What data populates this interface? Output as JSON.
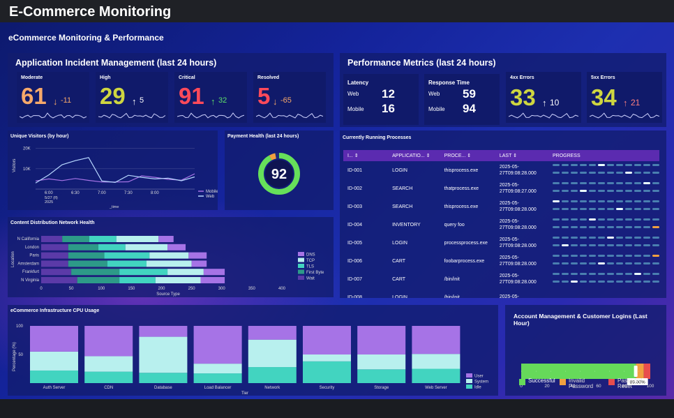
{
  "app": {
    "title": "E-Commerce Monitoring"
  },
  "dashboard": {
    "title": "eCommerce Monitoring & Performance"
  },
  "incidents": {
    "title": "Application Incident Management (last 24 hours)",
    "cards": [
      {
        "label": "Moderate",
        "value": "61",
        "arrow": "↓",
        "delta": "-11",
        "value_color": "#f7a96a",
        "delta_color": "#f7a96a"
      },
      {
        "label": "High",
        "value": "29",
        "arrow": "↑",
        "delta": "5",
        "value_color": "#cfd640",
        "delta_color": "#ffffff"
      },
      {
        "label": "Critical",
        "value": "91",
        "arrow": "↑",
        "delta": "32",
        "value_color": "#ff4a5a",
        "delta_color": "#5ee06a"
      },
      {
        "label": "Resolved",
        "value": "5",
        "arrow": "↓",
        "delta": "-65",
        "value_color": "#ff4a5a",
        "delta_color": "#f7a96a"
      }
    ]
  },
  "perf": {
    "title": "Performance Metrics (last 24 hours)",
    "latency": {
      "label": "Latency",
      "web_label": "Web",
      "web": "12",
      "mobile_label": "Mobile",
      "mobile": "16"
    },
    "response": {
      "label": "Response Time",
      "web_label": "Web",
      "web": "59",
      "mobile_label": "Mobile",
      "mobile": "94"
    },
    "errors4": {
      "label": "4xx Errors",
      "value": "33",
      "arrow": "↑",
      "delta": "10",
      "value_color": "#cfd640",
      "delta_color": "#ffffff"
    },
    "errors5": {
      "label": "5xx Errors",
      "value": "34",
      "arrow": "↑",
      "delta": "21",
      "value_color": "#cfd640",
      "delta_color": "#ff8080"
    }
  },
  "visitors": {
    "title": "Unique Visitors (by hour)",
    "ylabel": "Visitors",
    "xlabel": "_time",
    "date1": "5/27 (fl)",
    "date2": "2025"
  },
  "payment": {
    "title": "Payment Health (last 24 hours)",
    "value": "92",
    "fraction": 0.92
  },
  "processes": {
    "title": "Currently Running Processes",
    "columns": [
      "I... ⇕",
      "APPLICATIO... ⇕",
      "PROCE... ⇕",
      "LAST ⇕",
      "PROGRESS"
    ],
    "rows": [
      {
        "id": "ID-001",
        "app": "LOGIN",
        "proc": "thisprocess.exe",
        "last1": "2025-05-",
        "last2": "27T09:08:28.000",
        "p1": 5,
        "p2": 8
      },
      {
        "id": "ID-002",
        "app": "SEARCH",
        "proc": "thatprocess.exe",
        "last1": "2025-05-",
        "last2": "27T09:08:27.000",
        "p1": 10,
        "p2": 3
      },
      {
        "id": "ID-003",
        "app": "SEARCH",
        "proc": "thisprocess.exe",
        "last1": "2025-05-",
        "last2": "27T09:08:28.000",
        "p1": 0,
        "p2": 7
      },
      {
        "id": "ID-004",
        "app": "INVENTORY",
        "proc": "query foo",
        "last1": "2025-05-",
        "last2": "27T09:08:28.000",
        "p1": 4,
        "p2": 11
      },
      {
        "id": "ID-005",
        "app": "LOGIN",
        "proc": "processprocess.exe",
        "last1": "2025-05-",
        "last2": "27T09:08:28.000",
        "p1": 6,
        "p2": 1
      },
      {
        "id": "ID-006",
        "app": "CART",
        "proc": "foobarprocess.exe",
        "last1": "2025-05-",
        "last2": "27T09:08:28.000",
        "p1": 11,
        "p2": 5
      },
      {
        "id": "ID-007",
        "app": "CART",
        "proc": "/bin/init",
        "last1": "2025-05-",
        "last2": "27T09:08:28.000",
        "p1": 9,
        "p2": 2
      },
      {
        "id": "ID-008",
        "app": "LOGIN",
        "proc": "/bin/init",
        "last1": "2025-05-",
        "last2": "",
        "p1": -1,
        "p2": -1
      }
    ]
  },
  "cdn": {
    "title": "Content Distribution Network Health",
    "xlabel": "Source Type",
    "ylabel": "Location"
  },
  "cpu": {
    "title": "eCommerce Infrastructure CPU Usage",
    "xlabel": "Tier",
    "ylabel": "Percentage (%)"
  },
  "logins": {
    "title": "Account Management & Customer Logins (Last Hour)",
    "tooltip": "89.00%",
    "legend": [
      "Successful",
      "Invalid Password",
      "Password Reset"
    ]
  },
  "colors": {
    "dns": "#a673e6",
    "tcp": "#b8f0ee",
    "tls": "#42d4c0",
    "first_byte": "#2d9a88",
    "wait": "#5b3aa8",
    "user": "#a673e6",
    "system": "#b8f0ee",
    "idle": "#42d4c0",
    "successful": "#66d95a",
    "invalid": "#f0a040",
    "reset": "#e84d4d"
  },
  "chart_data": [
    {
      "type": "line",
      "title": "Unique Visitors (by hour)",
      "xlabel": "_time",
      "ylabel": "Visitors",
      "x": [
        "5:45",
        "6:00",
        "6:15",
        "6:30",
        "6:45",
        "7:00",
        "7:15",
        "7:30",
        "7:45",
        "8:00",
        "8:15",
        "8:30",
        "8:45"
      ],
      "x_ticks": [
        "6:00",
        "6:30",
        "7:00",
        "7:30",
        "8:00"
      ],
      "y_ticks": [
        "20K",
        "10K"
      ],
      "ylim": [
        0,
        24000
      ],
      "series": [
        {
          "name": "Mobile",
          "values": [
            4000,
            5000,
            4200,
            5200,
            4300,
            3500,
            3500,
            3600,
            6500,
            5800,
            4800,
            4400,
            7500
          ]
        },
        {
          "name": "Web",
          "values": [
            3000,
            7000,
            12000,
            14000,
            15500,
            4000,
            3300,
            6800,
            5800,
            5000,
            5400,
            4100,
            6000
          ]
        }
      ]
    },
    {
      "type": "bar",
      "stacked": true,
      "orientation": "horizontal",
      "title": "Content Distribution Network Health",
      "xlabel": "Source Type",
      "ylabel": "Location",
      "categories": [
        "N California",
        "London",
        "Paris",
        "Amsterdam",
        "Frankfurt",
        "N Virginia"
      ],
      "x_ticks": [
        0,
        50,
        100,
        150,
        200,
        250,
        300,
        350,
        400
      ],
      "xlim": [
        0,
        420
      ],
      "series": [
        {
          "name": "DNS",
          "values": [
            25,
            30,
            30,
            25,
            35,
            40
          ]
        },
        {
          "name": "TCP",
          "values": [
            70,
            70,
            65,
            75,
            60,
            75
          ]
        },
        {
          "name": "TLS",
          "values": [
            45,
            45,
            75,
            65,
            80,
            60
          ]
        },
        {
          "name": "First Byte",
          "values": [
            45,
            50,
            60,
            65,
            80,
            70
          ]
        },
        {
          "name": "Wait",
          "values": [
            35,
            45,
            45,
            45,
            50,
            60
          ]
        }
      ]
    },
    {
      "type": "bar",
      "stacked": true,
      "title": "eCommerce Infrastructure CPU Usage",
      "xlabel": "Tier",
      "ylabel": "Percentage (%)",
      "categories": [
        "Auth Server",
        "CDN",
        "Database",
        "Load Balancer",
        "Network",
        "Security",
        "Storage",
        "Web Server"
      ],
      "y_ticks": [
        100,
        50
      ],
      "ylim": [
        0,
        100
      ],
      "series": [
        {
          "name": "Idle",
          "values": [
            22,
            20,
            18,
            17,
            28,
            38,
            24,
            25
          ]
        },
        {
          "name": "System",
          "values": [
            33,
            27,
            63,
            17,
            48,
            12,
            26,
            26
          ]
        },
        {
          "name": "User",
          "values": [
            45,
            53,
            19,
            66,
            24,
            50,
            50,
            49
          ]
        }
      ]
    },
    {
      "type": "bar",
      "stacked": true,
      "orientation": "horizontal",
      "title": "Account Management & Customer Logins (Last Hour)",
      "x_ticks": [
        0,
        20,
        40,
        60,
        80,
        100
      ],
      "xlim": [
        0,
        100
      ],
      "series": [
        {
          "name": "Successful",
          "values": [
            89
          ]
        },
        {
          "name": "Invalid Password",
          "values": [
            6
          ]
        },
        {
          "name": "Password Reset",
          "values": [
            5
          ]
        }
      ]
    }
  ]
}
